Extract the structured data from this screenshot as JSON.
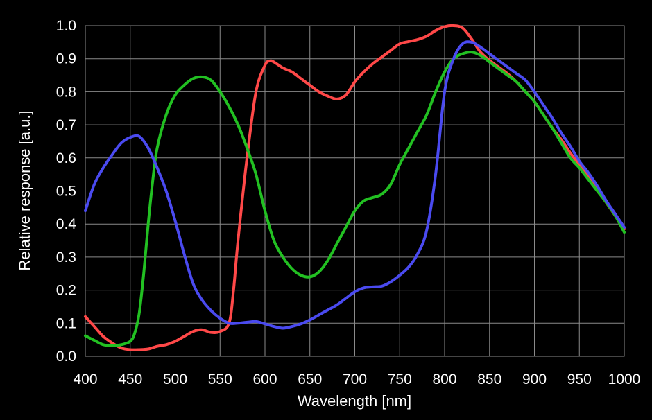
{
  "chart_data": {
    "type": "line",
    "title": "",
    "xlabel": "Wavelength [nm]",
    "ylabel": "Relative response [a.u.]",
    "xlim": [
      400,
      1000
    ],
    "ylim": [
      0.0,
      1.0
    ],
    "x_ticks": [
      "400",
      "450",
      "500",
      "550",
      "600",
      "650",
      "700",
      "750",
      "800",
      "850",
      "900",
      "950",
      "1000"
    ],
    "y_ticks": [
      "0.0",
      "0.1",
      "0.2",
      "0.3",
      "0.4",
      "0.5",
      "0.6",
      "0.7",
      "0.8",
      "0.9",
      "1.0"
    ],
    "grid": true,
    "background": "#000000",
    "series": [
      {
        "color": "#ff4848",
        "x": [
          400,
          410,
          420,
          430,
          440,
          450,
          460,
          470,
          480,
          490,
          500,
          510,
          520,
          530,
          540,
          550,
          560,
          565,
          570,
          580,
          590,
          600,
          605,
          610,
          620,
          630,
          640,
          650,
          660,
          670,
          680,
          690,
          700,
          710,
          720,
          730,
          740,
          750,
          760,
          770,
          780,
          790,
          800,
          810,
          820,
          830,
          840,
          850,
          860,
          870,
          880,
          890,
          900,
          910,
          920,
          930,
          940,
          950,
          960,
          970,
          980,
          990,
          1000
        ],
        "y": [
          0.12,
          0.09,
          0.06,
          0.04,
          0.025,
          0.02,
          0.02,
          0.022,
          0.03,
          0.035,
          0.045,
          0.06,
          0.075,
          0.08,
          0.072,
          0.075,
          0.1,
          0.2,
          0.35,
          0.6,
          0.8,
          0.88,
          0.893,
          0.89,
          0.872,
          0.86,
          0.84,
          0.82,
          0.8,
          0.787,
          0.778,
          0.79,
          0.83,
          0.86,
          0.885,
          0.905,
          0.925,
          0.945,
          0.952,
          0.958,
          0.968,
          0.985,
          0.997,
          1.0,
          0.993,
          0.96,
          0.92,
          0.895,
          0.875,
          0.855,
          0.83,
          0.8,
          0.77,
          0.73,
          0.69,
          0.655,
          0.615,
          0.58,
          0.545,
          0.505,
          0.465,
          0.425,
          0.385
        ]
      },
      {
        "color": "#22c022",
        "x": [
          400,
          410,
          420,
          430,
          440,
          450,
          455,
          460,
          465,
          470,
          475,
          480,
          490,
          500,
          510,
          520,
          530,
          540,
          550,
          560,
          570,
          580,
          590,
          600,
          610,
          620,
          630,
          640,
          650,
          660,
          670,
          680,
          690,
          700,
          710,
          720,
          730,
          740,
          750,
          760,
          770,
          780,
          790,
          800,
          810,
          820,
          830,
          840,
          850,
          860,
          870,
          880,
          890,
          900,
          910,
          920,
          930,
          940,
          950,
          960,
          970,
          980,
          990,
          1000
        ],
        "y": [
          0.062,
          0.048,
          0.035,
          0.032,
          0.035,
          0.045,
          0.07,
          0.13,
          0.25,
          0.4,
          0.53,
          0.63,
          0.73,
          0.79,
          0.82,
          0.84,
          0.845,
          0.835,
          0.8,
          0.755,
          0.7,
          0.63,
          0.55,
          0.44,
          0.35,
          0.3,
          0.265,
          0.245,
          0.24,
          0.255,
          0.29,
          0.34,
          0.39,
          0.44,
          0.47,
          0.48,
          0.49,
          0.52,
          0.58,
          0.63,
          0.68,
          0.73,
          0.8,
          0.86,
          0.9,
          0.915,
          0.92,
          0.91,
          0.89,
          0.87,
          0.85,
          0.83,
          0.8,
          0.77,
          0.73,
          0.69,
          0.645,
          0.6,
          0.57,
          0.535,
          0.5,
          0.465,
          0.425,
          0.375
        ]
      },
      {
        "color": "#4a4af0",
        "x": [
          400,
          410,
          420,
          430,
          440,
          450,
          460,
          470,
          480,
          490,
          500,
          510,
          520,
          530,
          540,
          550,
          560,
          570,
          580,
          590,
          600,
          610,
          620,
          630,
          640,
          650,
          660,
          670,
          680,
          690,
          700,
          710,
          720,
          730,
          740,
          750,
          760,
          770,
          780,
          790,
          800,
          810,
          820,
          830,
          840,
          850,
          860,
          870,
          880,
          890,
          900,
          910,
          920,
          930,
          940,
          950,
          960,
          970,
          980,
          990,
          1000
        ],
        "y": [
          0.44,
          0.52,
          0.57,
          0.61,
          0.645,
          0.662,
          0.665,
          0.63,
          0.57,
          0.5,
          0.41,
          0.31,
          0.22,
          0.17,
          0.138,
          0.115,
          0.1,
          0.1,
          0.103,
          0.105,
          0.098,
          0.09,
          0.085,
          0.09,
          0.098,
          0.11,
          0.125,
          0.14,
          0.155,
          0.175,
          0.195,
          0.207,
          0.21,
          0.212,
          0.225,
          0.245,
          0.27,
          0.31,
          0.38,
          0.55,
          0.8,
          0.9,
          0.945,
          0.95,
          0.935,
          0.915,
          0.895,
          0.875,
          0.855,
          0.835,
          0.8,
          0.76,
          0.72,
          0.675,
          0.635,
          0.59,
          0.555,
          0.515,
          0.47,
          0.43,
          0.39
        ]
      }
    ]
  }
}
